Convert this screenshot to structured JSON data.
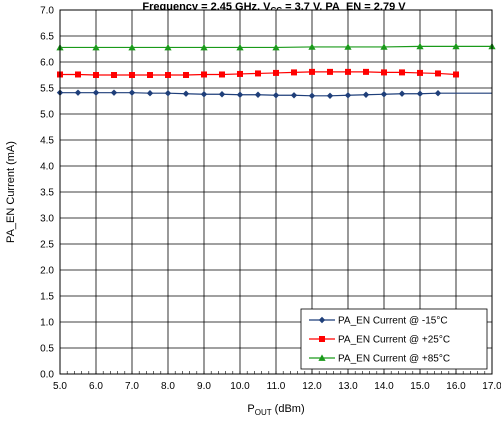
{
  "chart_data": {
    "type": "line",
    "title": {
      "prefix": "Frequency = 2.45 GHz, V",
      "sub": "CC",
      "suffix": " = 3.7 V, PA_EN = 2.79 V"
    },
    "xlabel": {
      "main": "P",
      "sub": "OUT",
      "suffix": " (dBm)"
    },
    "ylabel": "PA_EN Current (mA)",
    "xlim": [
      5.0,
      17.0
    ],
    "ylim": [
      0.0,
      7.0
    ],
    "x_ticks": [
      "5.0",
      "6.0",
      "7.0",
      "8.0",
      "9.0",
      "10.0",
      "11.0",
      "12.0",
      "13.0",
      "14.0",
      "15.0",
      "16.0",
      "17.0"
    ],
    "y_ticks": [
      "0.0",
      "0.5",
      "1.0",
      "1.5",
      "2.0",
      "2.5",
      "3.0",
      "3.5",
      "4.0",
      "4.5",
      "5.0",
      "5.5",
      "6.0",
      "6.5",
      "7.0"
    ],
    "grid": true,
    "legend_position": "bottom-right",
    "series": [
      {
        "name": "PA_EN Current @ -15°C",
        "color": "#1f3f7a",
        "marker": "diamond",
        "x": [
          5.0,
          5.5,
          6.0,
          6.5,
          7.0,
          7.5,
          8.0,
          8.5,
          9.0,
          9.5,
          10.0,
          10.5,
          11.0,
          11.5,
          12.0,
          12.5,
          13.0,
          13.5,
          14.0,
          14.5,
          15.0,
          15.5
        ],
        "y": [
          5.41,
          5.41,
          5.41,
          5.41,
          5.41,
          5.4,
          5.4,
          5.39,
          5.38,
          5.38,
          5.37,
          5.37,
          5.36,
          5.36,
          5.35,
          5.35,
          5.36,
          5.37,
          5.38,
          5.39,
          5.39,
          5.4
        ],
        "line_extends_to": 17.0
      },
      {
        "name": "PA_EN Current @ +25°C",
        "color": "#ff0000",
        "marker": "square",
        "x": [
          5.0,
          5.5,
          6.0,
          6.5,
          7.0,
          7.5,
          8.0,
          8.5,
          9.0,
          9.5,
          10.0,
          10.5,
          11.0,
          11.5,
          12.0,
          12.5,
          13.0,
          13.5,
          14.0,
          14.5,
          15.0,
          15.5,
          16.0
        ],
        "y": [
          5.76,
          5.76,
          5.75,
          5.75,
          5.75,
          5.75,
          5.75,
          5.75,
          5.76,
          5.76,
          5.77,
          5.78,
          5.79,
          5.8,
          5.81,
          5.81,
          5.81,
          5.81,
          5.8,
          5.8,
          5.79,
          5.78,
          5.76
        ]
      },
      {
        "name": "PA_EN Current @ +85°C",
        "color": "#1a9a1a",
        "marker": "triangle",
        "x": [
          5.0,
          6.0,
          7.0,
          8.0,
          9.0,
          10.0,
          11.0,
          12.0,
          13.0,
          14.0,
          15.0,
          16.0,
          17.0
        ],
        "y": [
          6.28,
          6.28,
          6.28,
          6.28,
          6.28,
          6.28,
          6.28,
          6.29,
          6.29,
          6.29,
          6.3,
          6.3,
          6.3
        ]
      }
    ]
  }
}
